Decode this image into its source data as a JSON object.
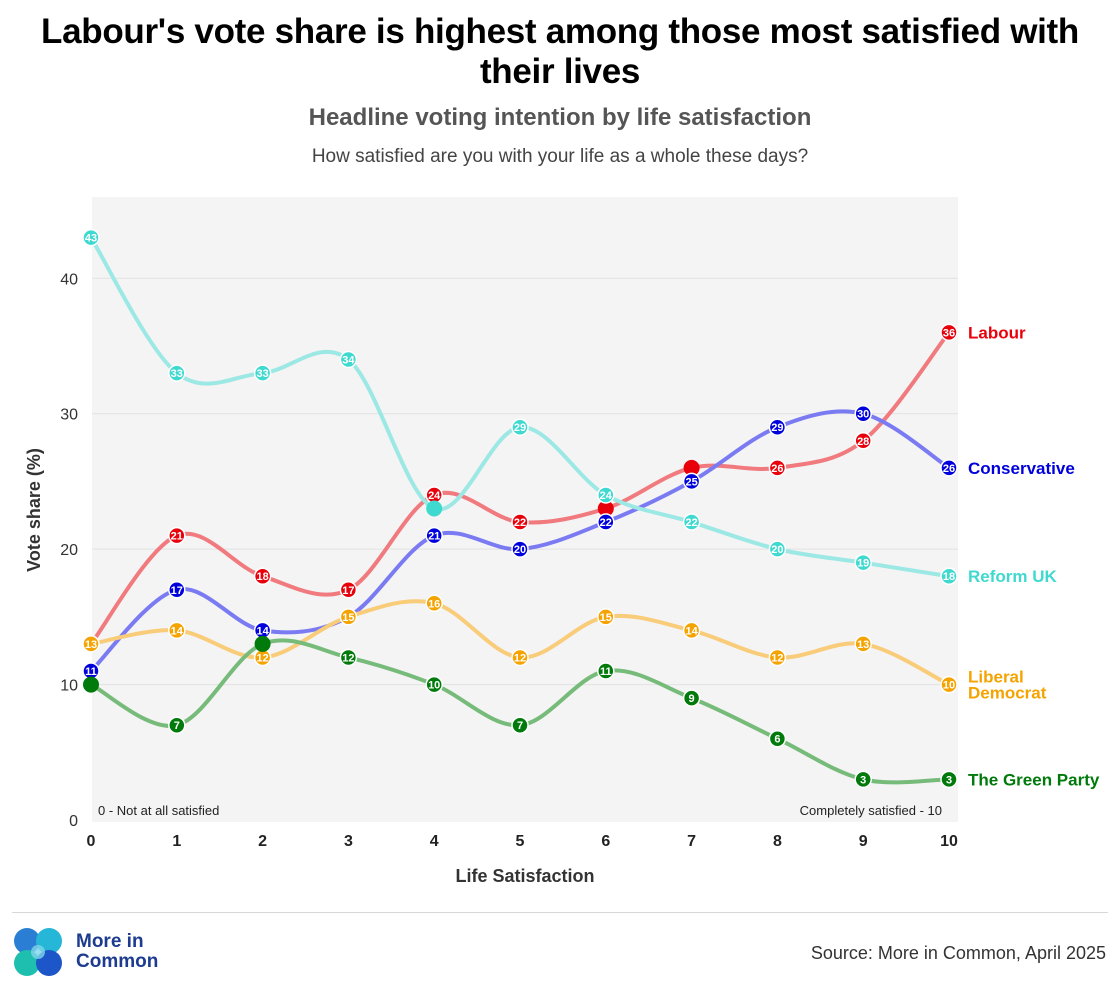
{
  "chart_data": {
    "type": "line",
    "title": "Labour's vote share is highest among those most satisfied with their lives",
    "subtitle": "Headline voting intention by life satisfaction",
    "question": "How satisfied are you with your life as a whole these days?",
    "xlabel": "Life Satisfaction",
    "ylabel": "Vote share (%)",
    "x": [
      0,
      1,
      2,
      3,
      4,
      5,
      6,
      7,
      8,
      9,
      10
    ],
    "xlim": [
      0,
      10
    ],
    "ylim": [
      0,
      46
    ],
    "yticks": [
      0,
      10,
      20,
      30,
      40
    ],
    "annotations": {
      "left": "0 - Not at all satisfied",
      "right": "Completely satisfied - 10"
    },
    "series": [
      {
        "name": "Labour",
        "color": "#e8000b",
        "line_color": "#f07a7e",
        "values": [
          13,
          21,
          18,
          17,
          24,
          22,
          23,
          26,
          26,
          28,
          36
        ],
        "labels": [
          13,
          21,
          18,
          17,
          24,
          22,
          null,
          null,
          26,
          28,
          36
        ]
      },
      {
        "name": "Conservative",
        "color": "#0000dd",
        "line_color": "#7a7af2",
        "values": [
          11,
          17,
          14,
          15,
          21,
          20,
          22,
          25,
          29,
          30,
          26
        ],
        "labels": [
          11,
          17,
          14,
          null,
          21,
          20,
          22,
          25,
          29,
          30,
          26
        ]
      },
      {
        "name": "Reform UK",
        "color": "#3fd9d0",
        "line_color": "#9ce8e4",
        "values": [
          43,
          33,
          33,
          34,
          23,
          29,
          24,
          22,
          20,
          19,
          18
        ],
        "labels": [
          43,
          33,
          33,
          34,
          null,
          29,
          24,
          22,
          20,
          19,
          18
        ]
      },
      {
        "name": "Liberal Democrat",
        "name_lines": [
          "Liberal",
          "Democrat"
        ],
        "color": "#f5a300",
        "line_color": "#f9cc7a",
        "values": [
          13,
          14,
          12,
          15,
          16,
          12,
          15,
          14,
          12,
          13,
          10
        ],
        "labels": [
          13,
          14,
          12,
          15,
          16,
          12,
          15,
          14,
          12,
          13,
          10
        ]
      },
      {
        "name": "The Green Party",
        "color": "#007a0a",
        "line_color": "#77bb7a",
        "values": [
          10,
          7,
          13,
          12,
          10,
          7,
          11,
          9,
          6,
          3,
          3
        ],
        "labels": [
          null,
          7,
          null,
          12,
          10,
          7,
          11,
          9,
          6,
          3,
          3
        ]
      }
    ]
  },
  "footer": {
    "logo_line1": "More in",
    "logo_line2": "Common",
    "source": "Source: More in Common, April 2025"
  }
}
